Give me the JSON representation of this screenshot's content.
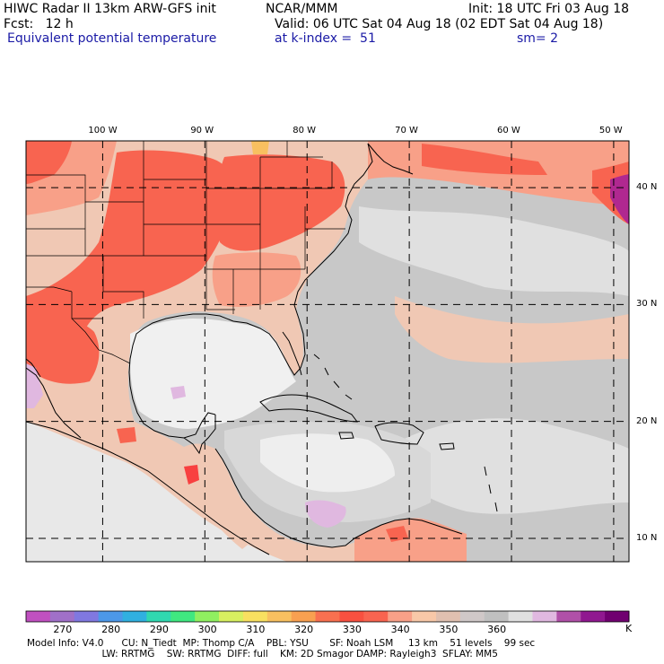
{
  "header": {
    "line1_left": "HIWC Radar II 13km ARW-GFS init",
    "line1_mid": "NCAR/MMM",
    "line1_right": "Init: 18 UTC Fri 03 Aug 18",
    "line2_left": "Fcst:   12 h",
    "line2_right": "Valid: 06 UTC Sat 04 Aug 18 (02 EDT Sat 04 Aug 18)",
    "field": "Equivalent potential temperature",
    "level": "at k-index =  51",
    "smooth": "sm= 2"
  },
  "map": {
    "lon_labels": [
      "100 W",
      "90 W",
      "80 W",
      "70 W",
      "60 W",
      "50 W"
    ],
    "lon_values": [
      -100,
      -90,
      -80,
      -70,
      -60,
      -50
    ],
    "lat_labels": [
      "40 N",
      "30 N",
      "20 N",
      "10 N"
    ],
    "lat_values": [
      40,
      30,
      20,
      10
    ],
    "lon_range": [
      -107.5,
      -48.5
    ],
    "lat_range": [
      8.0,
      44.0
    ],
    "colors": {
      "ocean_mid": "#c8c8c8",
      "ocean_light": "#e4e4e4",
      "warm_tan": "#f0c8b4",
      "warm_salmon": "#f8a088",
      "hot_red": "#f86450",
      "very_hot": "#f84040",
      "gulf_white": "#f0f0f0",
      "purple_low": "#e0b8e0",
      "violet_high": "#b02890",
      "coast": "#000000",
      "grid": "#000000"
    }
  },
  "colorbar": {
    "colors": [
      "#c050c0",
      "#a070c8",
      "#8078e0",
      "#4c98e8",
      "#30b0e0",
      "#30d8b0",
      "#40e880",
      "#90f060",
      "#d8f060",
      "#f8e060",
      "#f8c060",
      "#f8a050",
      "#f87050",
      "#f85040",
      "#f86450",
      "#f8a088",
      "#f8c8a8",
      "#e0c0b0",
      "#d0c8c8",
      "#c0c0c0",
      "#e0e0e0",
      "#e0b8e0",
      "#b050a8",
      "#901890",
      "#700070"
    ],
    "ticks": [
      "270",
      "280",
      "290",
      "300",
      "310",
      "320",
      "330",
      "340",
      "350",
      "360"
    ],
    "unit": "K"
  },
  "footer": {
    "line1": "Model Info: V4.0      CU: N_Tiedt  MP: Thomp C/A    PBL: YSU       SF: Noah LSM     13 km    51 levels    99 sec",
    "line2": "                         LW: RRTMG    SW: RRTMG  DIFF: full    KM: 2D Smagor DAMP: Rayleigh3  SFLAY: MM5"
  }
}
